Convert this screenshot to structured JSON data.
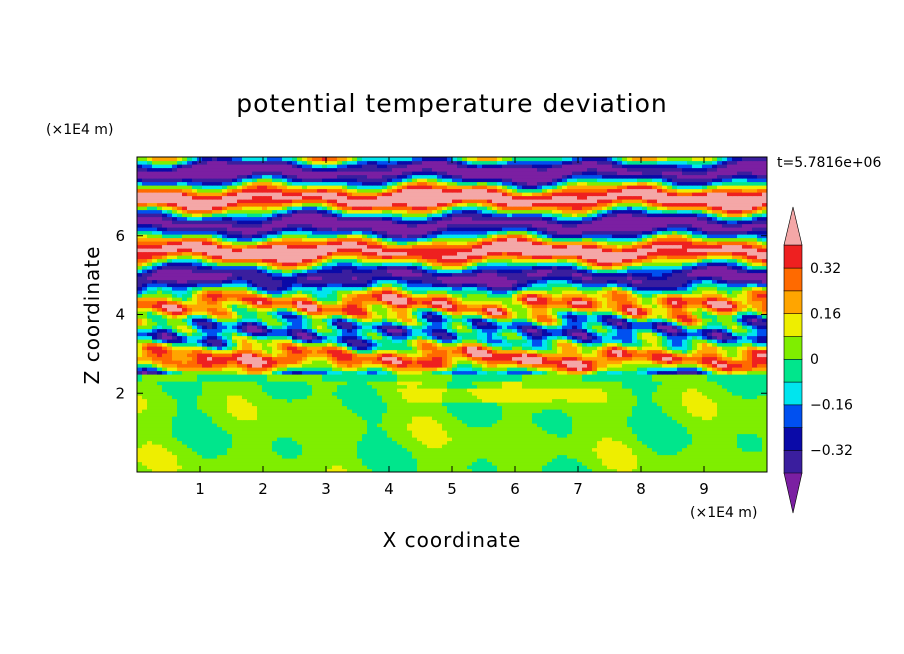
{
  "chart_data": {
    "type": "heatmap",
    "title": "potential temperature deviation",
    "xlabel": "X coordinate",
    "ylabel": "Z coordinate",
    "x_unit": "(×1E4 m)",
    "y_unit": "(×1E4 m)",
    "time_label": "t=5.7816e+06",
    "xlim": [
      0,
      10
    ],
    "ylim": [
      0,
      8
    ],
    "x_ticks": [
      1,
      2,
      3,
      4,
      5,
      6,
      7,
      8,
      9
    ],
    "y_ticks": [
      2,
      4,
      6
    ],
    "x_tick_labels": [
      "1",
      "2",
      "3",
      "4",
      "5",
      "6",
      "7",
      "8",
      "9"
    ],
    "y_tick_labels": [
      "2",
      "4",
      "6"
    ],
    "colorbar": {
      "levels": [
        -0.4,
        -0.32,
        -0.24,
        -0.16,
        -0.08,
        0,
        0.08,
        0.16,
        0.24,
        0.32,
        0.4
      ],
      "colors": [
        "#7b1fa2",
        "#3a1e9e",
        "#0a0aa8",
        "#0050f0",
        "#00e5ee",
        "#00e68c",
        "#7fee00",
        "#eeee00",
        "#ffa500",
        "#ff6a00",
        "#ee2020",
        "#f4a7a7"
      ],
      "tick_values": [
        0.32,
        0.16,
        0,
        -0.16,
        -0.32
      ],
      "tick_labels": [
        "0.32",
        "0.16",
        "0",
        "−0.16",
        "−0.32"
      ],
      "extend": "both"
    },
    "layers": [
      {
        "z_range": [
          0,
          2.45
        ],
        "field_range": [
          -0.04,
          0.12
        ],
        "pattern": "mixed-layer"
      },
      {
        "z_range": [
          2.45,
          8
        ],
        "field_range": [
          -0.4,
          0.4
        ],
        "pattern": "alternating-bands"
      }
    ]
  }
}
